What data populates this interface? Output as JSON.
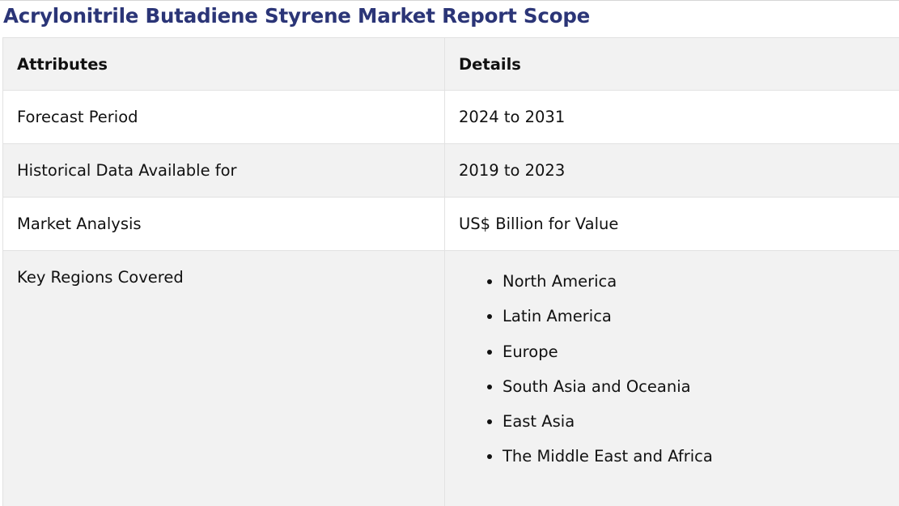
{
  "title": "Acrylonitrile Butadiene Styrene Market Report Scope",
  "table": {
    "headers": [
      "Attributes",
      "Details"
    ],
    "rows": [
      {
        "attribute": "Forecast Period",
        "detail": "2024 to 2031"
      },
      {
        "attribute": "Historical Data Available for",
        "detail": "2019 to 2023"
      },
      {
        "attribute": "Market Analysis",
        "detail": "US$ Billion for Value"
      }
    ],
    "regions": {
      "attribute": "Key Regions Covered",
      "items": [
        "North America",
        "Latin America",
        "Europe",
        "South Asia and Oceania",
        "East Asia",
        "The Middle East and Africa"
      ]
    }
  }
}
